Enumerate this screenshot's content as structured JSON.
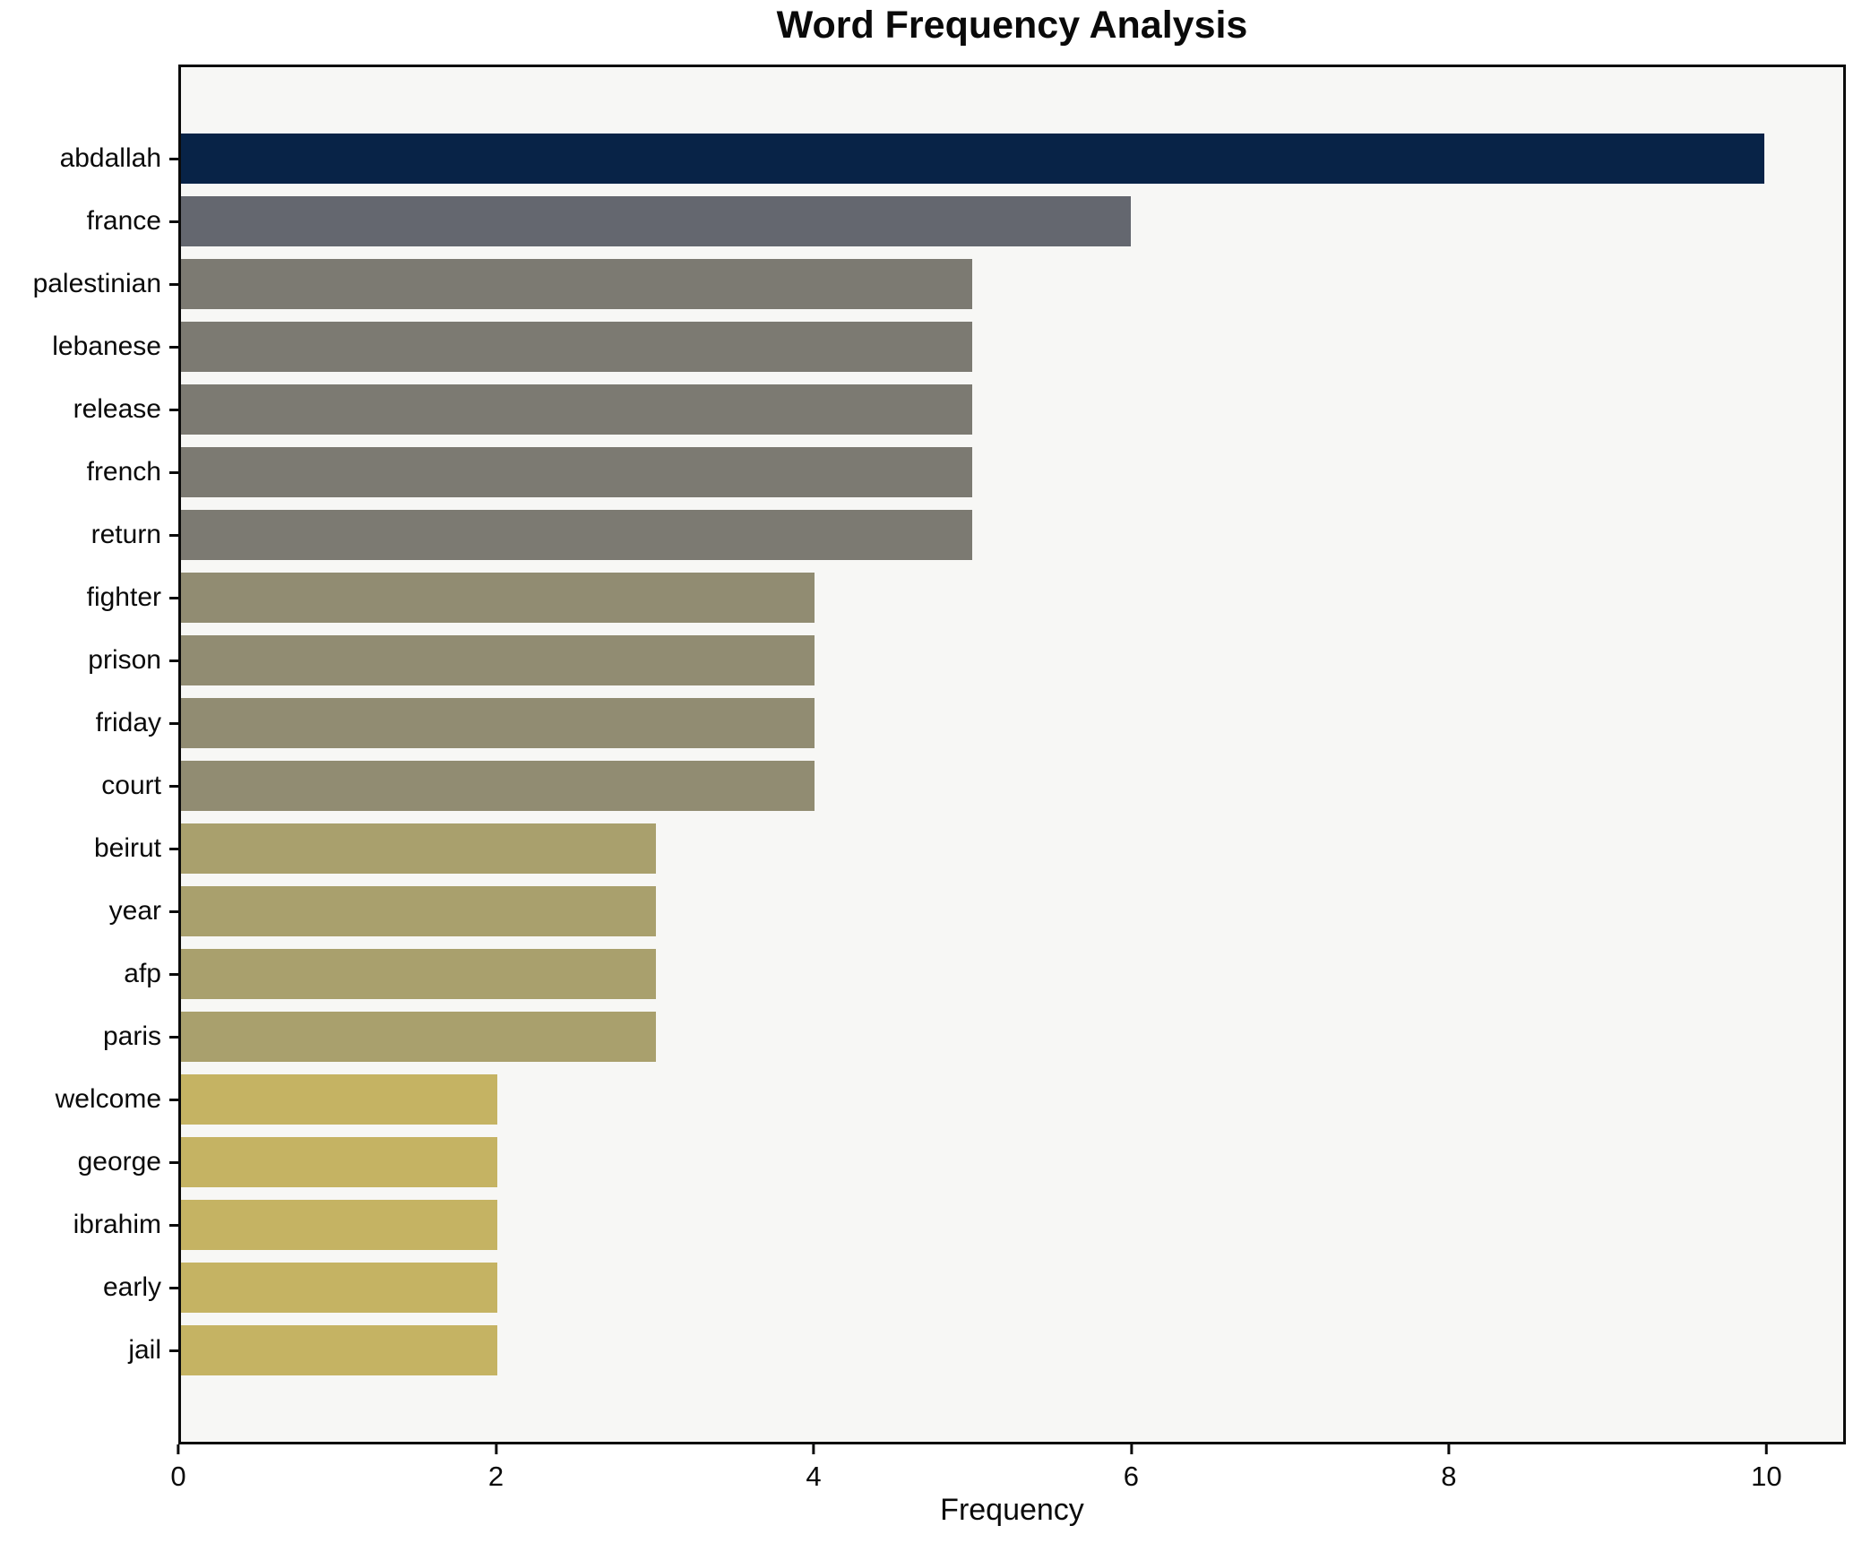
{
  "figure": {
    "background": "#ffffff",
    "plot_background": "#f7f7f5",
    "spine_color": "#0b0b0b"
  },
  "chart_data": {
    "type": "bar",
    "orientation": "horizontal",
    "title": "Word Frequency Analysis",
    "xlabel": "Frequency",
    "ylabel": "",
    "grid": false,
    "legend_position": "none",
    "xlim": [
      0,
      10.5
    ],
    "xticks": [
      0,
      2,
      4,
      6,
      8,
      10
    ],
    "categories": [
      "abdallah",
      "france",
      "palestinian",
      "lebanese",
      "release",
      "french",
      "return",
      "fighter",
      "prison",
      "friday",
      "court",
      "beirut",
      "year",
      "afp",
      "paris",
      "welcome",
      "george",
      "ibrahim",
      "early",
      "jail"
    ],
    "values": [
      10,
      6,
      5,
      5,
      5,
      5,
      5,
      4,
      4,
      4,
      4,
      3,
      3,
      3,
      3,
      2,
      2,
      2,
      2,
      2
    ],
    "bar_colors": [
      "#082347",
      "#64676f",
      "#7c7a72",
      "#7c7a72",
      "#7c7a72",
      "#7c7a72",
      "#7c7a72",
      "#918c72",
      "#918c72",
      "#918c72",
      "#918c72",
      "#a9a06d",
      "#a9a06d",
      "#a9a06d",
      "#a9a06d",
      "#c5b363",
      "#c5b363",
      "#c5b363",
      "#c5b363",
      "#c5b363"
    ]
  }
}
